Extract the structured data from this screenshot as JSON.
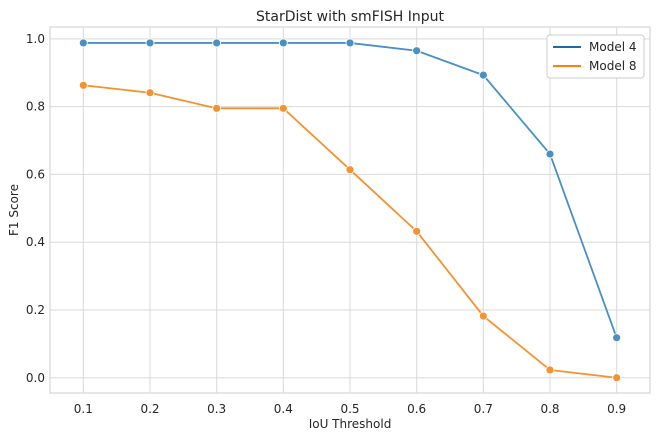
{
  "chart_data": {
    "type": "line",
    "title": "StarDist with smFISH Input",
    "xlabel": "IoU Threshold",
    "ylabel": "F1 Score",
    "x": [
      0.1,
      0.2,
      0.3,
      0.4,
      0.5,
      0.6,
      0.7,
      0.8,
      0.9
    ],
    "xticks": [
      "0.1",
      "0.2",
      "0.3",
      "0.4",
      "0.5",
      "0.6",
      "0.7",
      "0.8",
      "0.9"
    ],
    "yticks": [
      "0.0",
      "0.2",
      "0.4",
      "0.6",
      "0.8",
      "1.0"
    ],
    "xlim": [
      0.05,
      0.95
    ],
    "ylim": [
      -0.045,
      1.035
    ],
    "grid": true,
    "legend_position": "top-right",
    "series": [
      {
        "name": "Model 4",
        "color": "#4a90c2",
        "legend_color": "#1f6aa5",
        "values": [
          0.988,
          0.988,
          0.988,
          0.988,
          0.988,
          0.965,
          0.893,
          0.66,
          0.118
        ]
      },
      {
        "name": "Model 8",
        "color": "#f5922f",
        "legend_color": "#ff7f0e",
        "values": [
          0.863,
          0.841,
          0.795,
          0.795,
          0.614,
          0.432,
          0.182,
          0.023,
          0.0
        ]
      }
    ]
  }
}
